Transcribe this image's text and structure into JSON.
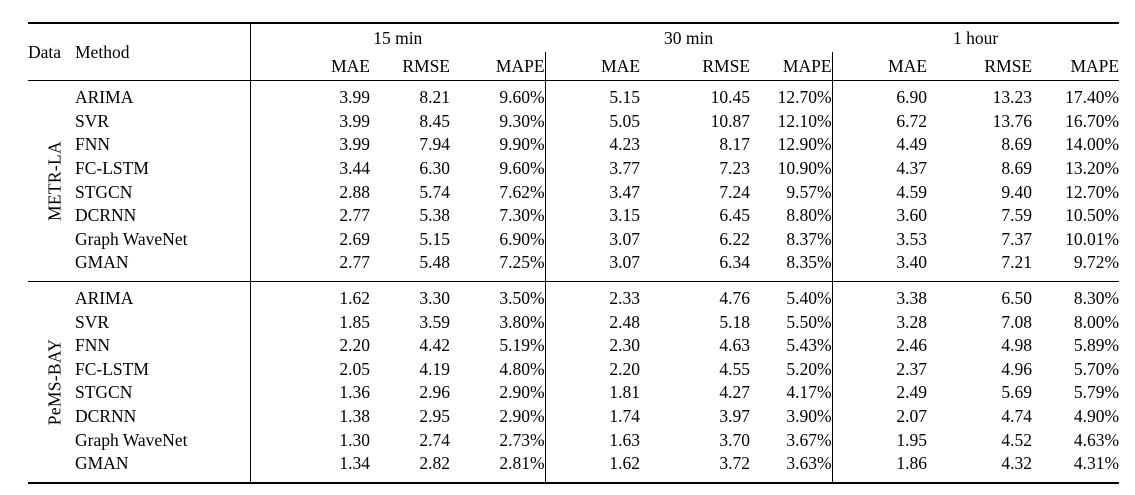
{
  "table": {
    "header": {
      "data": "Data",
      "method": "Method",
      "groups": [
        "15 min",
        "30 min",
        "1 hour"
      ],
      "metrics": [
        "MAE",
        "RMSE",
        "MAPE"
      ]
    },
    "blocks": [
      {
        "dataset": "METR-LA",
        "rows": [
          {
            "method": "ARIMA",
            "values": [
              "3.99",
              "8.21",
              "9.60%",
              "5.15",
              "10.45",
              "12.70%",
              "6.90",
              "13.23",
              "17.40%"
            ],
            "bold": []
          },
          {
            "method": "SVR",
            "values": [
              "3.99",
              "8.45",
              "9.30%",
              "5.05",
              "10.87",
              "12.10%",
              "6.72",
              "13.76",
              "16.70%"
            ],
            "bold": []
          },
          {
            "method": "FNN",
            "values": [
              "3.99",
              "7.94",
              "9.90%",
              "4.23",
              "8.17",
              "12.90%",
              "4.49",
              "8.69",
              "14.00%"
            ],
            "bold": []
          },
          {
            "method": "FC-LSTM",
            "values": [
              "3.44",
              "6.30",
              "9.60%",
              "3.77",
              "7.23",
              "10.90%",
              "4.37",
              "8.69",
              "13.20%"
            ],
            "bold": []
          },
          {
            "method": "STGCN",
            "values": [
              "2.88",
              "5.74",
              "7.62%",
              "3.47",
              "7.24",
              "9.57%",
              "4.59",
              "9.40",
              "12.70%"
            ],
            "bold": []
          },
          {
            "method": "DCRNN",
            "values": [
              "2.77",
              "5.38",
              "7.30%",
              "3.15",
              "6.45",
              "8.80%",
              "3.60",
              "7.59",
              "10.50%"
            ],
            "bold": []
          },
          {
            "method": "Graph WaveNet",
            "values": [
              "2.69",
              "5.15",
              "6.90%",
              "3.07",
              "6.22",
              "8.37%",
              "3.53",
              "7.37",
              "10.01%"
            ],
            "bold": [
              0,
              1,
              2,
              3,
              4
            ]
          },
          {
            "method": "GMAN",
            "values": [
              "2.77",
              "5.48",
              "7.25%",
              "3.07",
              "6.34",
              "8.35%",
              "3.40",
              "7.21",
              "9.72%"
            ],
            "bold": [
              3,
              5,
              6,
              7,
              8
            ]
          }
        ]
      },
      {
        "dataset": "PeMS-BAY",
        "rows": [
          {
            "method": "ARIMA",
            "values": [
              "1.62",
              "3.30",
              "3.50%",
              "2.33",
              "4.76",
              "5.40%",
              "3.38",
              "6.50",
              "8.30%"
            ],
            "bold": []
          },
          {
            "method": "SVR",
            "values": [
              "1.85",
              "3.59",
              "3.80%",
              "2.48",
              "5.18",
              "5.50%",
              "3.28",
              "7.08",
              "8.00%"
            ],
            "bold": []
          },
          {
            "method": "FNN",
            "values": [
              "2.20",
              "4.42",
              "5.19%",
              "2.30",
              "4.63",
              "5.43%",
              "2.46",
              "4.98",
              "5.89%"
            ],
            "bold": []
          },
          {
            "method": "FC-LSTM",
            "values": [
              "2.05",
              "4.19",
              "4.80%",
              "2.20",
              "4.55",
              "5.20%",
              "2.37",
              "4.96",
              "5.70%"
            ],
            "bold": []
          },
          {
            "method": "STGCN",
            "values": [
              "1.36",
              "2.96",
              "2.90%",
              "1.81",
              "4.27",
              "4.17%",
              "2.49",
              "5.69",
              "5.79%"
            ],
            "bold": []
          },
          {
            "method": "DCRNN",
            "values": [
              "1.38",
              "2.95",
              "2.90%",
              "1.74",
              "3.97",
              "3.90%",
              "2.07",
              "4.74",
              "4.90%"
            ],
            "bold": []
          },
          {
            "method": "Graph WaveNet",
            "values": [
              "1.30",
              "2.74",
              "2.73%",
              "1.63",
              "3.70",
              "3.67%",
              "1.95",
              "4.52",
              "4.63%"
            ],
            "bold": [
              0,
              1,
              2,
              4
            ]
          },
          {
            "method": "GMAN",
            "values": [
              "1.34",
              "2.82",
              "2.81%",
              "1.62",
              "3.72",
              "3.63%",
              "1.86",
              "4.32",
              "4.31%"
            ],
            "bold": [
              3,
              5,
              6,
              7,
              8
            ]
          }
        ]
      }
    ]
  }
}
